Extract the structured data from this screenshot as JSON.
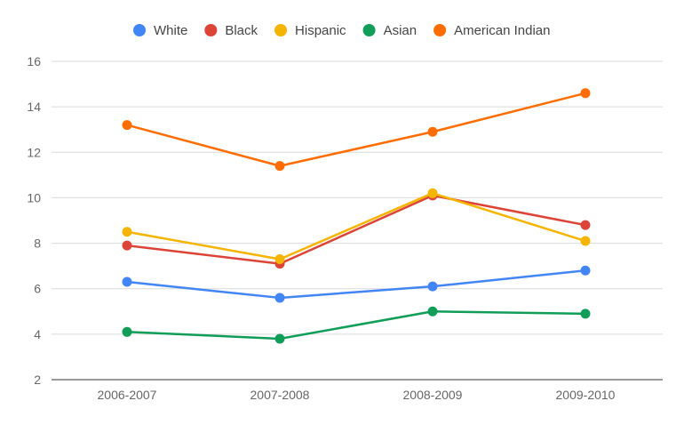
{
  "chart_data": {
    "type": "line",
    "title": "",
    "xlabel": "",
    "ylabel": "",
    "categories": [
      "2006-2007",
      "2007-2008",
      "2008-2009",
      "2009-2010"
    ],
    "ylim": [
      2,
      16
    ],
    "yticks": [
      2,
      4,
      6,
      8,
      10,
      12,
      14,
      16
    ],
    "grid": true,
    "legend_position": "top",
    "series": [
      {
        "name": "White",
        "color": "#4285f4",
        "values": [
          6.3,
          5.6,
          6.1,
          6.8
        ]
      },
      {
        "name": "Black",
        "color": "#db4437",
        "values": [
          7.9,
          7.1,
          10.1,
          8.8
        ]
      },
      {
        "name": "Hispanic",
        "color": "#f4b400",
        "values": [
          8.5,
          7.3,
          10.2,
          8.1
        ]
      },
      {
        "name": "Asian",
        "color": "#0f9d58",
        "values": [
          4.1,
          3.8,
          5.0,
          4.9
        ]
      },
      {
        "name": "American Indian",
        "color": "#ff6d01",
        "values": [
          13.2,
          11.4,
          12.9,
          14.6
        ]
      }
    ]
  }
}
